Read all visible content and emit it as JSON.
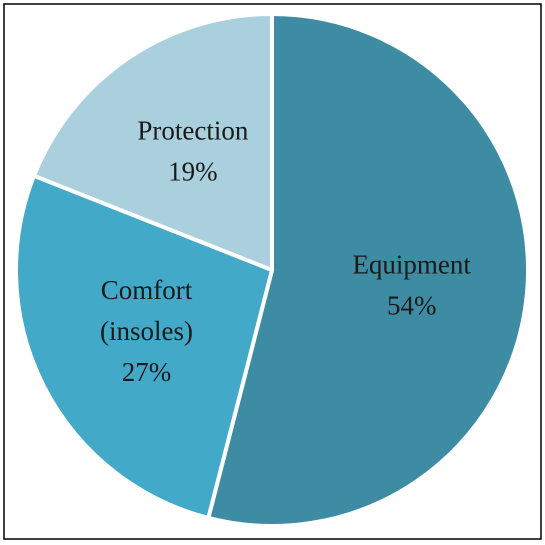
{
  "chart_data": {
    "type": "pie",
    "categories": [
      "Equipment",
      "Comfort (insoles)",
      "Protection"
    ],
    "values": [
      54,
      27,
      19
    ],
    "value_labels": [
      "54%",
      "27%",
      "19%"
    ],
    "colors": [
      "#3e8ca4",
      "#42a9c8",
      "#aacfdd"
    ]
  }
}
